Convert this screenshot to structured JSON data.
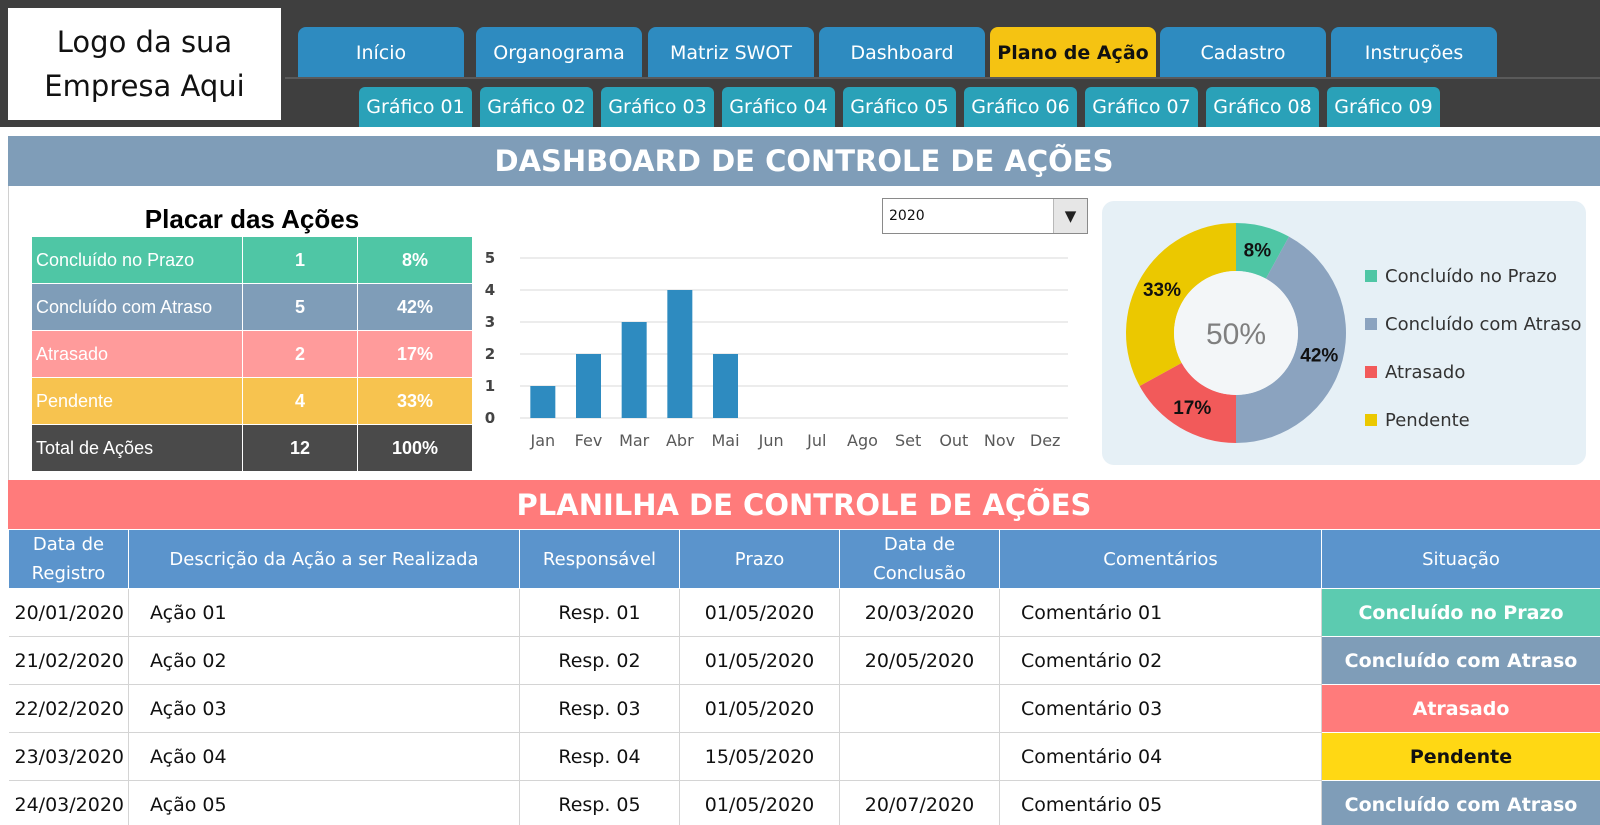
{
  "logo": {
    "text": "Logo da sua\nEmpresa Aqui"
  },
  "nav": {
    "tabs": [
      "Início",
      "Organograma",
      "Matriz SWOT",
      "Dashboard",
      "Plano de Ação",
      "Cadastro",
      "Instruções"
    ],
    "active_tab": "Plano de Ação",
    "subtabs": [
      "Gráfico 01",
      "Gráfico 02",
      "Gráfico 03",
      "Gráfico 04",
      "Gráfico 05",
      "Gráfico 06",
      "Gráfico 07",
      "Gráfico 08",
      "Gráfico 09"
    ]
  },
  "dashboard": {
    "title": "DASHBOARD DE CONTROLE DE AÇÕES",
    "placar_title": "Placar das Ações",
    "placar_rows": [
      {
        "label": "Concluído no Prazo",
        "count": "1",
        "pct": "8%",
        "color": "#4fc6a5"
      },
      {
        "label": "Concluído com Atraso",
        "count": "5",
        "pct": "42%",
        "color": "#7f9db8"
      },
      {
        "label": "Atrasado",
        "count": "2",
        "pct": "17%",
        "color": "#ff9b9b"
      },
      {
        "label": "Pendente",
        "count": "4",
        "pct": "33%",
        "color": "#f7c34f"
      },
      {
        "label": "Total de Ações",
        "count": "12",
        "pct": "100%",
        "color": "#4a4a4a"
      }
    ],
    "year_select": {
      "value": "2020"
    }
  },
  "chart_data": [
    {
      "type": "bar",
      "categories": [
        "Jan",
        "Fev",
        "Mar",
        "Abr",
        "Mai",
        "Jun",
        "Jul",
        "Ago",
        "Set",
        "Out",
        "Nov",
        "Dez"
      ],
      "values": [
        1,
        2,
        3,
        4,
        2,
        0,
        0,
        0,
        0,
        0,
        0,
        0
      ],
      "ylim": [
        0,
        5
      ],
      "yticks": [
        "0",
        "1",
        "2",
        "3",
        "4",
        "5"
      ],
      "grid": true,
      "bar_color": "#2e8bc0",
      "title": "",
      "xlabel": "",
      "ylabel": ""
    },
    {
      "type": "pie",
      "variant": "donut",
      "center_label": "50%",
      "slices": [
        {
          "name": "Concluído no Prazo",
          "value": 8,
          "label": "8%",
          "color": "#4fc6a5"
        },
        {
          "name": "Concluído com Atraso",
          "value": 42,
          "label": "42%",
          "color": "#8ba3bf"
        },
        {
          "name": "Atrasado",
          "value": 17,
          "label": "17%",
          "color": "#f25a5a"
        },
        {
          "name": "Pendente",
          "value": 33,
          "label": "33%",
          "color": "#ebc800"
        }
      ],
      "legend_position": "right"
    }
  ],
  "planilha": {
    "title": "PLANILHA DE CONTROLE DE AÇÕES",
    "columns": [
      "Data de\nRegistro",
      "Descrição da Ação a ser Realizada",
      "Responsável",
      "Prazo",
      "Data de\nConclusão",
      "Comentários",
      "Situação"
    ],
    "rows": [
      {
        "registro": "20/01/2020",
        "descricao": "Ação 01",
        "responsavel": "Resp. 01",
        "prazo": "01/05/2020",
        "conclusao": "20/03/2020",
        "comentario": "Comentário 01",
        "situacao": "Concluído no Prazo",
        "status_color": "#5ccbb0",
        "status_text_color": "#ffffff"
      },
      {
        "registro": "21/02/2020",
        "descricao": "Ação 02",
        "responsavel": "Resp. 02",
        "prazo": "01/05/2020",
        "conclusao": "20/05/2020",
        "comentario": "Comentário 02",
        "situacao": "Concluído com Atraso",
        "status_color": "#7f9db8",
        "status_text_color": "#ffffff"
      },
      {
        "registro": "22/02/2020",
        "descricao": "Ação 03",
        "responsavel": "Resp. 03",
        "prazo": "01/05/2020",
        "conclusao": "",
        "comentario": "Comentário 03",
        "situacao": "Atrasado",
        "status_color": "#ff7b7b",
        "status_text_color": "#ffffff"
      },
      {
        "registro": "23/03/2020",
        "descricao": "Ação 04",
        "responsavel": "Resp. 04",
        "prazo": "15/05/2020",
        "conclusao": "",
        "comentario": "Comentário 04",
        "situacao": "Pendente",
        "status_color": "#ffd814",
        "status_text_color": "#111111"
      },
      {
        "registro": "24/03/2020",
        "descricao": "Ação 05",
        "responsavel": "Resp. 05",
        "prazo": "01/05/2020",
        "conclusao": "20/07/2020",
        "comentario": "Comentário 05",
        "situacao": "Concluído com Atraso",
        "status_color": "#7f9db8",
        "status_text_color": "#ffffff"
      }
    ]
  }
}
